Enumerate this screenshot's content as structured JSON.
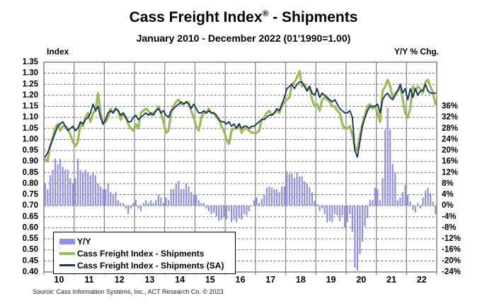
{
  "page": {
    "title_pre": "Cass Freight Index",
    "title_reg": "®",
    "title_post": " - Shipments",
    "subtitle": "January 2010 - December 2022 (01'1990=1.00)",
    "source": "Source:  Cass Information  Systems, Inc.,  ACT Research  Co. © 2023"
  },
  "colors": {
    "background": "#FFFFFF",
    "frame": "#808080",
    "grid_vertical": "#808080",
    "grid_dashed": "#595959",
    "bar": "#9191EB",
    "line_shipments": "#9BBB59",
    "line_shipments_sa": "#17375E"
  },
  "chart_data": {
    "type": "combo",
    "title": "Cass Freight Index® - Shipments",
    "subtitle": "January 2010 - December 2022 (01'1990=1.00)",
    "grid": true,
    "legend_position": "bottom-left-inside",
    "source": "Source:  Cass Information  Systems, Inc.,  ACT Research  Co. © 2023",
    "x": {
      "frequency": "monthly",
      "start": "2010-01",
      "end": "2022-12",
      "months": 156,
      "year_labels": [
        "10",
        "11",
        "12",
        "13",
        "14",
        "15",
        "16",
        "17",
        "18",
        "19",
        "20",
        "21",
        "22"
      ]
    },
    "left_axis": {
      "label": "Index",
      "min": 0.4,
      "max": 1.35,
      "step": 0.05,
      "ticks": [
        "1.35",
        "1.30",
        "1.25",
        "1.20",
        "1.15",
        "1.10",
        "1.05",
        "1.00",
        "0.95",
        "0.90",
        "0.85",
        "0.80",
        "0.75",
        "0.70",
        "0.65",
        "0.60",
        "0.55",
        "0.50",
        "0.45",
        "0.40"
      ]
    },
    "right_axis": {
      "label": "Y/Y % Chg.",
      "min": -24,
      "max": 36,
      "step": 4,
      "ticks": [
        "36%",
        "32%",
        "28%",
        "24%",
        "20%",
        "16%",
        "12%",
        "8%",
        "4%",
        "0%",
        "-4%",
        "-8%",
        "-12%",
        "-16%",
        "-20%",
        "-24%"
      ],
      "zero_aligns_with_left_value": 0.7,
      "pct_per_left_unit": 80
    },
    "series": [
      {
        "name": "Y/Y",
        "type": "bar",
        "axis": "right",
        "unit": "%",
        "color": "#9191EB",
        "values": [
          8,
          6,
          11,
          13,
          17,
          15,
          17,
          14,
          13,
          13,
          10,
          8,
          10,
          17,
          13,
          12,
          13,
          12,
          11,
          12,
          11,
          8,
          7,
          6,
          6,
          8,
          5,
          4,
          5,
          2,
          1,
          1,
          -1,
          -3,
          -1,
          1,
          2,
          -1,
          -2,
          1,
          2,
          1,
          2,
          1,
          2,
          4,
          3,
          1,
          3,
          2,
          6,
          6,
          8,
          9,
          6,
          6,
          8,
          7,
          5,
          4,
          4,
          2,
          1,
          1,
          -1,
          -2,
          -3,
          -2.5,
          -4,
          -5.5,
          -5,
          -4,
          -5,
          -2,
          -6,
          -5,
          -6,
          -4.5,
          -5,
          -3,
          -3.5,
          -2,
          0,
          2,
          3,
          1,
          2.5,
          4,
          6.5,
          7,
          6.5,
          6,
          6,
          5,
          7,
          7,
          12.5,
          11.5,
          11.7,
          10,
          12,
          10.6,
          10.6,
          8.8,
          8.2,
          6.6,
          4.9,
          1.8,
          0.5,
          -2,
          -1,
          -3,
          -6,
          -5.5,
          -6,
          -3,
          -3.5,
          -5.5,
          -3.5,
          -8,
          -6,
          -3,
          -9.5,
          -22.5,
          -23.5,
          -17.5,
          -13,
          -7.5,
          -4.5,
          2,
          2,
          6.5,
          6,
          2,
          10,
          27.5,
          35.5,
          27.5,
          15,
          12,
          2,
          3,
          5,
          7.5,
          4,
          1.5,
          -1.5,
          -2.5,
          1,
          -1,
          3,
          5.5,
          6.5,
          4.5,
          1.5,
          -3
        ]
      },
      {
        "name": "Cass Freight Index - Shipments",
        "type": "line",
        "axis": "left",
        "color": "#9BBB59",
        "values": [
          0.91,
          0.9,
          0.97,
          1.01,
          1.05,
          1.07,
          1.04,
          1.06,
          1.06,
          1.05,
          1.02,
          0.99,
          0.97,
          0.99,
          1.07,
          1.06,
          1.1,
          1.12,
          1.08,
          1.12,
          1.13,
          1.21,
          1.12,
          1.07,
          1.08,
          1.1,
          1.14,
          1.12,
          1.14,
          1.13,
          1.09,
          1.12,
          1.1,
          1.07,
          1.05,
          1.04,
          1.07,
          1.05,
          1.12,
          1.13,
          1.14,
          1.13,
          1.11,
          1.12,
          1.13,
          1.15,
          1.12,
          1.08,
          1.03,
          1.04,
          1.12,
          1.15,
          1.17,
          1.18,
          1.16,
          1.16,
          1.17,
          1.17,
          1.13,
          1.1,
          1.06,
          1.04,
          1.1,
          1.12,
          1.12,
          1.14,
          1.12,
          1.12,
          1.1,
          1.09,
          1.06,
          1.04,
          1.0,
          0.98,
          1.04,
          1.05,
          1.05,
          1.07,
          1.03,
          1.05,
          1.05,
          1.04,
          1.03,
          1.03,
          1.03,
          1.04,
          1.09,
          1.1,
          1.12,
          1.13,
          1.11,
          1.12,
          1.13,
          1.12,
          1.15,
          1.17,
          1.18,
          1.19,
          1.25,
          1.26,
          1.28,
          1.31,
          1.24,
          1.25,
          1.22,
          1.24,
          1.18,
          1.15,
          1.16,
          1.13,
          1.18,
          1.19,
          1.18,
          1.17,
          1.15,
          1.15,
          1.13,
          1.12,
          1.07,
          1.05,
          1.05,
          1.06,
          1.02,
          0.96,
          0.95,
          1.02,
          1.07,
          1.11,
          1.15,
          1.16,
          1.14,
          1.15,
          1.12,
          1.08,
          1.22,
          1.24,
          1.27,
          1.24,
          1.19,
          1.21,
          1.22,
          1.24,
          1.18,
          1.12,
          1.1,
          1.14,
          1.24,
          1.22,
          1.24,
          1.23,
          1.21,
          1.26,
          1.27,
          1.24,
          1.21,
          1.16
        ]
      },
      {
        "name": "Cass Freight Index - Shipments (SA)",
        "type": "line",
        "axis": "left",
        "color": "#17375E",
        "values": [
          0.92,
          0.94,
          0.97,
          1.0,
          1.03,
          1.06,
          1.07,
          1.08,
          1.06,
          1.04,
          1.05,
          1.06,
          1.04,
          1.05,
          1.08,
          1.07,
          1.09,
          1.1,
          1.12,
          1.16,
          1.13,
          1.15,
          1.1,
          1.07,
          1.09,
          1.12,
          1.13,
          1.12,
          1.14,
          1.13,
          1.11,
          1.12,
          1.1,
          1.08,
          1.08,
          1.1,
          1.11,
          1.09,
          1.1,
          1.11,
          1.12,
          1.11,
          1.12,
          1.11,
          1.13,
          1.14,
          1.12,
          1.13,
          1.11,
          1.1,
          1.13,
          1.14,
          1.15,
          1.16,
          1.17,
          1.16,
          1.17,
          1.16,
          1.14,
          1.16,
          1.14,
          1.12,
          1.12,
          1.13,
          1.12,
          1.13,
          1.12,
          1.12,
          1.11,
          1.09,
          1.08,
          1.08,
          1.07,
          1.08,
          1.06,
          1.07,
          1.05,
          1.07,
          1.05,
          1.06,
          1.06,
          1.05,
          1.06,
          1.06,
          1.07,
          1.08,
          1.09,
          1.09,
          1.1,
          1.11,
          1.11,
          1.12,
          1.14,
          1.13,
          1.16,
          1.19,
          1.23,
          1.24,
          1.25,
          1.23,
          1.25,
          1.26,
          1.26,
          1.24,
          1.22,
          1.24,
          1.21,
          1.2,
          1.23,
          1.19,
          1.21,
          1.2,
          1.19,
          1.18,
          1.17,
          1.18,
          1.16,
          1.14,
          1.13,
          1.12,
          1.12,
          1.13,
          1.1,
          0.95,
          0.92,
          0.99,
          1.06,
          1.1,
          1.13,
          1.15,
          1.15,
          1.15,
          1.16,
          1.12,
          1.18,
          1.2,
          1.21,
          1.19,
          1.18,
          1.2,
          1.22,
          1.25,
          1.21,
          1.23,
          1.18,
          1.23,
          1.19,
          1.23,
          1.2,
          1.22,
          1.22,
          1.25,
          1.22,
          1.21,
          1.21,
          1.21
        ]
      }
    ]
  }
}
